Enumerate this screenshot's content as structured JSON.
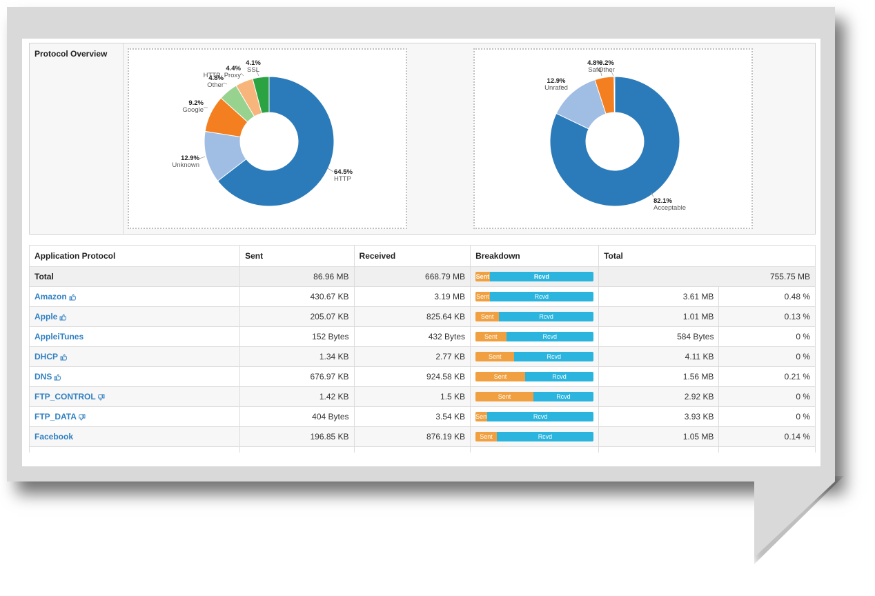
{
  "panel": {
    "title": "Protocol Overview"
  },
  "colors": {
    "blue": "#2b7bba",
    "light_blue": "#a0bde4",
    "orange": "#f47f20",
    "light_green": "#98d28f",
    "peach": "#f7b57b",
    "green": "#2ca343",
    "sent_bar": "#f0a040",
    "rcvd_bar": "#2ab4de",
    "link": "#2f7fc1"
  },
  "charts": [
    {
      "type": "pie",
      "slices": [
        {
          "label": "HTTP",
          "pct_label": "64.5%",
          "value": 64.5,
          "color": "#2b7bba"
        },
        {
          "label": "Unknown",
          "pct_label": "12.9%",
          "value": 12.9,
          "color": "#a0bde4"
        },
        {
          "label": "Google",
          "pct_label": "9.2%",
          "value": 9.2,
          "color": "#f47f20"
        },
        {
          "label": "Other",
          "pct_label": "4.8%",
          "value": 4.8,
          "color": "#98d28f"
        },
        {
          "label": "HTTP_Proxy",
          "pct_label": "4.4%",
          "value": 4.4,
          "color": "#f7b57b"
        },
        {
          "label": "SSL",
          "pct_label": "4.1%",
          "value": 4.1,
          "color": "#2ca343"
        }
      ]
    },
    {
      "type": "pie",
      "slices": [
        {
          "label": "Acceptable",
          "pct_label": "82.1%",
          "value": 82.1,
          "color": "#2b7bba"
        },
        {
          "label": "Unrated",
          "pct_label": "12.9%",
          "value": 12.9,
          "color": "#a0bde4"
        },
        {
          "label": "Safe",
          "pct_label": "4.8%",
          "value": 4.8,
          "color": "#f47f20"
        },
        {
          "label": "Other",
          "pct_label": "0.2%",
          "value": 0.2,
          "color": "#2b7bba"
        }
      ]
    }
  ],
  "table": {
    "headers": {
      "protocol": "Application Protocol",
      "sent": "Sent",
      "received": "Received",
      "breakdown": "Breakdown",
      "total": "Total"
    },
    "bar_labels": {
      "sent": "Sent",
      "rcvd": "Rcvd"
    },
    "total_row": {
      "name": "Total",
      "sent": "86.96 MB",
      "received": "668.79 MB",
      "sent_fraction": 0.12,
      "total": "755.75 MB"
    },
    "rows": [
      {
        "name": "Amazon",
        "thumb": "thumbs-up-icon",
        "sent": "430.67 KB",
        "received": "3.19 MB",
        "sent_fraction": 0.12,
        "total": "3.61 MB",
        "pct": "0.48 %"
      },
      {
        "name": "Apple",
        "thumb": "thumbs-up-icon",
        "sent": "205.07 KB",
        "received": "825.64 KB",
        "sent_fraction": 0.2,
        "total": "1.01 MB",
        "pct": "0.13 %"
      },
      {
        "name": "AppleiTunes",
        "thumb": "",
        "sent": "152 Bytes",
        "received": "432 Bytes",
        "sent_fraction": 0.26,
        "total": "584 Bytes",
        "pct": "0 %"
      },
      {
        "name": "DHCP",
        "thumb": "thumbs-up-icon",
        "sent": "1.34 KB",
        "received": "2.77 KB",
        "sent_fraction": 0.33,
        "total": "4.11 KB",
        "pct": "0 %"
      },
      {
        "name": "DNS",
        "thumb": "thumbs-up-icon",
        "sent": "676.97 KB",
        "received": "924.58 KB",
        "sent_fraction": 0.42,
        "total": "1.56 MB",
        "pct": "0.21 %"
      },
      {
        "name": "FTP_CONTROL",
        "thumb": "thumbs-down-icon",
        "sent": "1.42 KB",
        "received": "1.5 KB",
        "sent_fraction": 0.49,
        "total": "2.92 KB",
        "pct": "0 %"
      },
      {
        "name": "FTP_DATA",
        "thumb": "thumbs-down-icon",
        "sent": "404 Bytes",
        "received": "3.54 KB",
        "sent_fraction": 0.1,
        "total": "3.93 KB",
        "pct": "0 %"
      },
      {
        "name": "Facebook",
        "thumb": "",
        "sent": "196.85 KB",
        "received": "876.19 KB",
        "sent_fraction": 0.18,
        "total": "1.05 MB",
        "pct": "0.14 %"
      }
    ]
  }
}
